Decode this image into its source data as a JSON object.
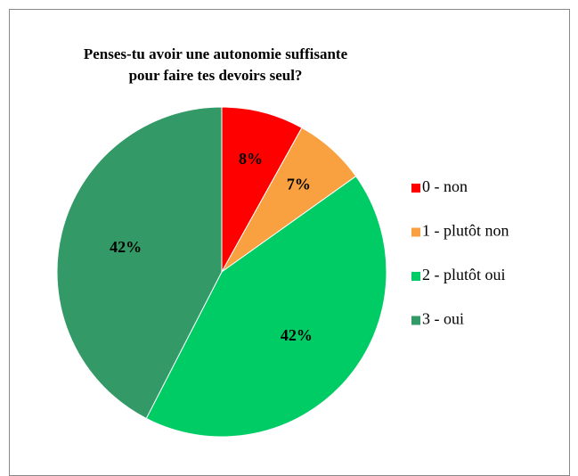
{
  "chart_data": {
    "type": "pie",
    "title": "Penses-tu avoir une autonomie suffisante",
    "subtitle": "pour faire tes devoirs seul?",
    "categories": [
      "0 - non",
      "1 - plutôt non",
      "2 - plutôt oui",
      "3 - oui"
    ],
    "values": [
      8,
      7,
      42,
      42
    ],
    "value_labels": [
      "8%",
      "7%",
      "42%",
      "42%"
    ],
    "colors": [
      "#ff0000",
      "#f9a040",
      "#00cc66",
      "#339966"
    ],
    "legend": "right"
  }
}
